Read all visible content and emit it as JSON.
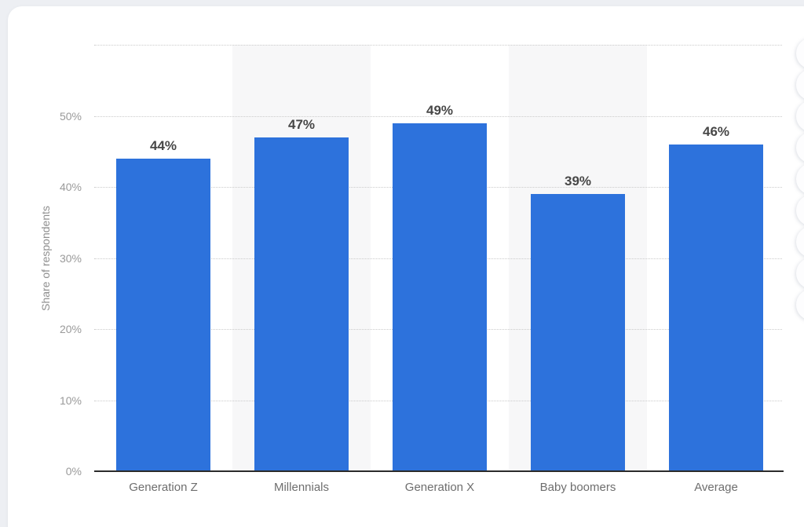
{
  "page": {
    "background_color": "#edeff3",
    "card_color": "#ffffff"
  },
  "chart_data": {
    "type": "bar",
    "title": "",
    "categories": [
      "Generation Z",
      "Millennials",
      "Generation X",
      "Baby boomers",
      "Average"
    ],
    "values": [
      44,
      47,
      49,
      39,
      46
    ],
    "value_labels": [
      "44%",
      "47%",
      "49%",
      "39%",
      "46%"
    ],
    "ylabel": "Share of respondents",
    "xlabel": "",
    "yticks": [
      0,
      10,
      20,
      30,
      40,
      50
    ],
    "ytick_labels": [
      "0%",
      "10%",
      "20%",
      "30%",
      "40%",
      "50%"
    ],
    "ylim": [
      0,
      60
    ],
    "grid": "horizontal-dotted",
    "legend": "none",
    "bar_color": "#2d72dc",
    "shaded_band_color": "#f7f7f8",
    "shaded_band_indices": [
      1,
      3
    ],
    "value_label_color": "#474747",
    "tick_label_color": "#9a9a9a",
    "category_label_color": "#6e6e6e",
    "axis_line_color": "#2b2b2b"
  },
  "side_toolbar": {
    "button_count": 9
  }
}
